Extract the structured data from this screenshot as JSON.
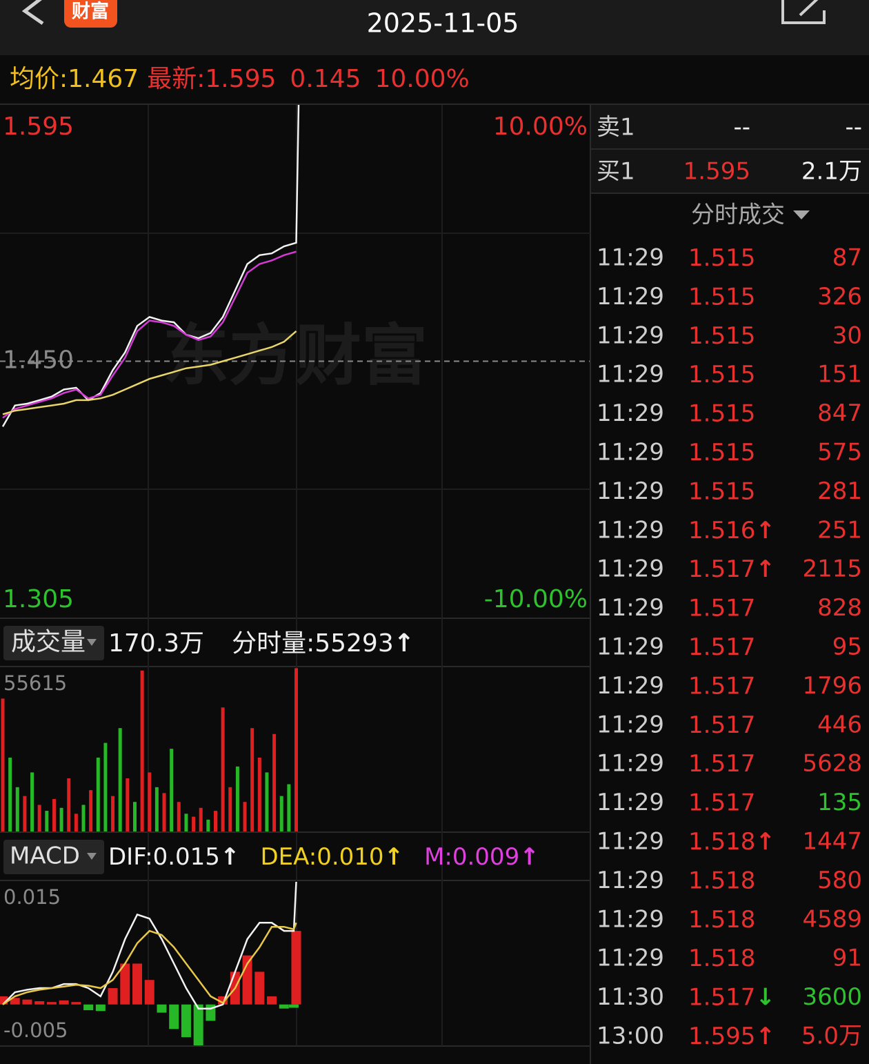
{
  "header": {
    "badge": "财富",
    "date": "2025-11-05"
  },
  "quote": {
    "avg_label": "均价:",
    "avg": "1.467",
    "last_label": "最新:",
    "last": "1.595",
    "change": "0.145",
    "change_pct": "10.00%"
  },
  "price_chart": {
    "type": "line",
    "watermark": "东方财富",
    "xlim": [
      0,
      240
    ],
    "ylim": [
      1.305,
      1.595
    ],
    "yticks": [
      1.595,
      {
        "value": 1.45,
        "label": "1.450"
      },
      1.305
    ],
    "y2lim": [
      -10,
      10
    ],
    "y2ticks": [
      {
        "value": 10,
        "label": "10.00%"
      },
      {
        "value": -10,
        "label": "-10.00%"
      }
    ],
    "up_color": "#e8312f",
    "down_color": "#2ec22e",
    "flat_color": "#8a8a8a",
    "x": [
      0,
      5,
      10,
      15,
      20,
      25,
      30,
      35,
      40,
      45,
      50,
      55,
      60,
      65,
      70,
      75,
      80,
      85,
      90,
      95,
      100,
      105,
      110,
      115,
      120,
      121
    ],
    "series": [
      {
        "color": "#f2f2f2",
        "values": [
          1.413,
          1.425,
          1.426,
          1.428,
          1.43,
          1.434,
          1.435,
          1.428,
          1.432,
          1.445,
          1.455,
          1.47,
          1.475,
          1.473,
          1.472,
          1.465,
          1.463,
          1.466,
          1.475,
          1.49,
          1.505,
          1.51,
          1.511,
          1.515,
          1.517,
          1.595
        ]
      },
      {
        "color": "#d43ad4",
        "values": [
          1.418,
          1.423,
          1.425,
          1.427,
          1.429,
          1.432,
          1.434,
          1.429,
          1.431,
          1.442,
          1.452,
          1.467,
          1.473,
          1.472,
          1.47,
          1.465,
          1.462,
          1.464,
          1.472,
          1.486,
          1.5,
          1.505,
          1.507,
          1.51,
          1.512,
          null
        ]
      },
      {
        "color": "#e8d66a",
        "values": [
          1.42,
          1.422,
          1.423,
          1.424,
          1.425,
          1.426,
          1.428,
          1.428,
          1.429,
          1.431,
          1.434,
          1.437,
          1.44,
          1.442,
          1.444,
          1.446,
          1.447,
          1.448,
          1.45,
          1.452,
          1.454,
          1.456,
          1.458,
          1.461,
          1.467,
          null
        ]
      }
    ]
  },
  "volume_chart": {
    "type": "bar",
    "label": "成交量",
    "total": "170.3万",
    "latest_label": "分时量:",
    "latest": "55293",
    "latest_dir": "↑",
    "xlim": [
      0,
      240
    ],
    "ylim": [
      0,
      55615
    ],
    "yticks": [
      55615
    ],
    "x": [
      0,
      3,
      6,
      9,
      12,
      15,
      18,
      21,
      24,
      27,
      30,
      33,
      36,
      39,
      42,
      45,
      48,
      51,
      54,
      57,
      60,
      63,
      66,
      69,
      72,
      75,
      78,
      81,
      84,
      87,
      90,
      93,
      96,
      99,
      102,
      105,
      108,
      111,
      114,
      117,
      120
    ],
    "values": [
      45000,
      25000,
      15000,
      12000,
      20000,
      9000,
      7000,
      11000,
      8000,
      18000,
      6000,
      9000,
      14000,
      25000,
      30000,
      12000,
      35000,
      18000,
      10000,
      54500,
      20000,
      15000,
      13000,
      28000,
      10000,
      6000,
      5000,
      8000,
      4000,
      7000,
      42000,
      15000,
      22000,
      10000,
      35000,
      25000,
      20000,
      33000,
      12000,
      16000,
      55293
    ],
    "colors": [
      "#e02020",
      "#26b826",
      "#26b826",
      "#e02020",
      "#26b826",
      "#e02020",
      "#26b826",
      "#e02020",
      "#26b826",
      "#e02020",
      "#e02020",
      "#26b826",
      "#e02020",
      "#26b826",
      "#26b826",
      "#e02020",
      "#26b826",
      "#e02020",
      "#26b826",
      "#e02020",
      "#e02020",
      "#26b826",
      "#e02020",
      "#26b826",
      "#e02020",
      "#26b826",
      "#e02020",
      "#e02020",
      "#26b826",
      "#e02020",
      "#e02020",
      "#e02020",
      "#26b826",
      "#e02020",
      "#e02020",
      "#e02020",
      "#26b826",
      "#e02020",
      "#26b826",
      "#26b826",
      "#e02020"
    ]
  },
  "macd_chart": {
    "type": "line",
    "label": "MACD",
    "dif_label": "DIF:",
    "dif": "0.015",
    "dif_dir": "↑",
    "dea_label": "DEA:",
    "dea": "0.010",
    "dea_dir": "↑",
    "m_label": "M:",
    "m": "0.009",
    "m_dir": "↑",
    "xlim": [
      0,
      240
    ],
    "ylim": [
      -0.005,
      0.015
    ],
    "yticks": [
      0.015,
      -0.005
    ],
    "pos_color": "#e02020",
    "neg_color": "#26b826",
    "x": [
      0,
      5,
      10,
      15,
      20,
      25,
      30,
      35,
      40,
      45,
      50,
      55,
      60,
      65,
      70,
      75,
      80,
      85,
      90,
      95,
      100,
      105,
      110,
      115,
      119,
      120
    ],
    "series": [
      {
        "color": "#f2f2f2",
        "values": [
          0,
          0.0015,
          0.0018,
          0.002,
          0.002,
          0.0025,
          0.0025,
          0.002,
          0.001,
          0.004,
          0.008,
          0.011,
          0.0105,
          0.008,
          0.005,
          0.002,
          -0.0005,
          -0.0005,
          0,
          0.004,
          0.008,
          0.01,
          0.01,
          0.009,
          0.009,
          0.015
        ]
      },
      {
        "color": "#e8c84a",
        "values": [
          0,
          0.001,
          0.0015,
          0.0018,
          0.002,
          0.0022,
          0.0024,
          0.0023,
          0.002,
          0.003,
          0.005,
          0.0075,
          0.009,
          0.0085,
          0.007,
          0.005,
          0.003,
          0.001,
          0.0002,
          0.002,
          0.005,
          0.007,
          0.0095,
          0.0095,
          0.0092,
          0.01
        ]
      }
    ],
    "histogram": [
      0.001,
      0.0008,
      0.0006,
      0.0004,
      0.0003,
      0.0005,
      0.0003,
      -0.0007,
      -0.0008,
      0.002,
      0.005,
      0.005,
      0.003,
      -0.001,
      -0.003,
      -0.004,
      -0.005,
      -0.002,
      0.001,
      0.004,
      0.006,
      0.004,
      0.001,
      -0.0005,
      -0.0004,
      0.009
    ]
  },
  "order_book": {
    "sell": {
      "label": "卖1",
      "price": "--",
      "volume": "--"
    },
    "buy": {
      "label": "买1",
      "price": "1.595",
      "volume": "2.1万"
    }
  },
  "trades": {
    "title": "分时成交",
    "rows": [
      {
        "time": "11:29",
        "price": "1.515",
        "volume": "87",
        "color": "#e8312f"
      },
      {
        "time": "11:29",
        "price": "1.515",
        "volume": "326",
        "color": "#e8312f"
      },
      {
        "time": "11:29",
        "price": "1.515",
        "volume": "30",
        "color": "#e8312f"
      },
      {
        "time": "11:29",
        "price": "1.515",
        "volume": "151",
        "color": "#e8312f"
      },
      {
        "time": "11:29",
        "price": "1.515",
        "volume": "847",
        "color": "#e8312f"
      },
      {
        "time": "11:29",
        "price": "1.515",
        "volume": "575",
        "color": "#e8312f"
      },
      {
        "time": "11:29",
        "price": "1.515",
        "volume": "281",
        "color": "#e8312f"
      },
      {
        "time": "11:29",
        "price": "1.516",
        "dir": "↑",
        "dir_color": "#e8312f",
        "volume": "251",
        "color": "#e8312f"
      },
      {
        "time": "11:29",
        "price": "1.517",
        "dir": "↑",
        "dir_color": "#e8312f",
        "volume": "2115",
        "color": "#e8312f"
      },
      {
        "time": "11:29",
        "price": "1.517",
        "volume": "828",
        "color": "#e8312f"
      },
      {
        "time": "11:29",
        "price": "1.517",
        "volume": "95",
        "color": "#e8312f"
      },
      {
        "time": "11:29",
        "price": "1.517",
        "volume": "1796",
        "color": "#e8312f"
      },
      {
        "time": "11:29",
        "price": "1.517",
        "volume": "446",
        "color": "#e8312f"
      },
      {
        "time": "11:29",
        "price": "1.517",
        "volume": "5628",
        "color": "#e8312f"
      },
      {
        "time": "11:29",
        "price": "1.517",
        "volume": "135",
        "color": "#2ec22e"
      },
      {
        "time": "11:29",
        "price": "1.518",
        "dir": "↑",
        "dir_color": "#e8312f",
        "volume": "1447",
        "color": "#e8312f"
      },
      {
        "time": "11:29",
        "price": "1.518",
        "volume": "580",
        "color": "#e8312f"
      },
      {
        "time": "11:29",
        "price": "1.518",
        "volume": "4589",
        "color": "#e8312f"
      },
      {
        "time": "11:29",
        "price": "1.518",
        "volume": "91",
        "color": "#e8312f"
      },
      {
        "time": "11:30",
        "price": "1.517",
        "dir": "↓",
        "dir_color": "#2ec22e",
        "volume": "3600",
        "color": "#2ec22e"
      },
      {
        "time": "13:00",
        "price": "1.595",
        "dir": "↑",
        "dir_color": "#e8312f",
        "volume": "5.0万",
        "color": "#e8312f"
      }
    ]
  }
}
